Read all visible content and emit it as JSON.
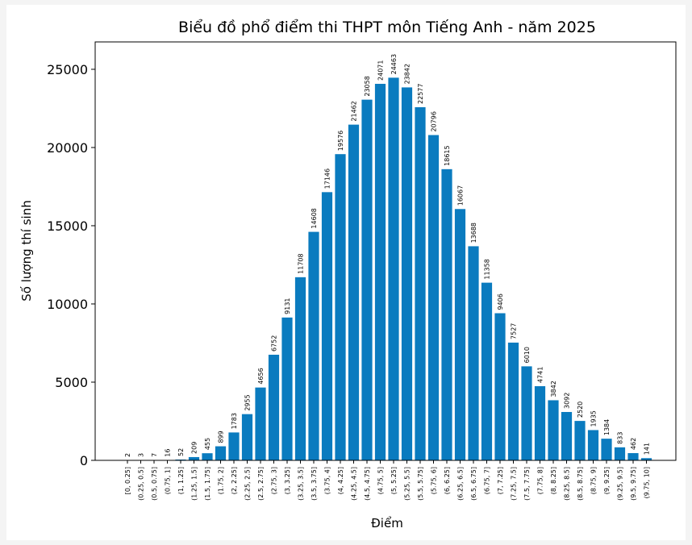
{
  "chart_data": {
    "type": "bar",
    "title": "Biểu đồ phổ điểm thi THPT môn Tiếng Anh - năm 2025",
    "x_label": "Điểm",
    "y_label": "Số lượng thí sinh",
    "categories": [
      "[0, 0.25]",
      "(0.25, 0.5]",
      "(0.5, 0.75]",
      "(0.75, 1]",
      "(1, 1.25]",
      "(1.25, 1.5]",
      "(1.5, 1.75]",
      "(1.75, 2]",
      "(2, 2.25]",
      "(2.25, 2.5]",
      "(2.5, 2.75]",
      "(2.75, 3]",
      "(3, 3.25]",
      "(3.25, 3.5]",
      "(3.5, 3.75]",
      "(3.75, 4]",
      "(4, 4.25]",
      "(4.25, 4.5]",
      "(4.5, 4.75]",
      "(4.75, 5]",
      "(5, 5.25]",
      "(5.25, 5.5]",
      "(5.5, 5.75]",
      "(5.75, 6]",
      "(6, 6.25]",
      "(6.25, 6.5]",
      "(6.5, 6.75]",
      "(6.75, 7]",
      "(7, 7.25]",
      "(7.25, 7.5]",
      "(7.5, 7.75]",
      "(7.75, 8]",
      "(8, 8.25]",
      "(8.25, 8.5]",
      "(8.5, 8.75]",
      "(8.75, 9]",
      "(9, 9.25]",
      "(9.25, 9.5]",
      "(9.5, 9.75]",
      "(9.75, 10]"
    ],
    "values": [
      2,
      3,
      7,
      16,
      52,
      209,
      455,
      899,
      1783,
      2955,
      4656,
      6752,
      9131,
      11708,
      14608,
      17146,
      19576,
      21462,
      23058,
      24071,
      24463,
      23842,
      22577,
      20796,
      18615,
      16067,
      13688,
      11358,
      9406,
      7527,
      6010,
      4741,
      3842,
      3092,
      2520,
      1935,
      1384,
      833,
      462,
      141
    ],
    "color": "#0a7bbf",
    "ylim": [
      0,
      26750
    ],
    "yticks": [
      0,
      5000,
      10000,
      15000,
      20000,
      25000
    ],
    "grid": false
  }
}
